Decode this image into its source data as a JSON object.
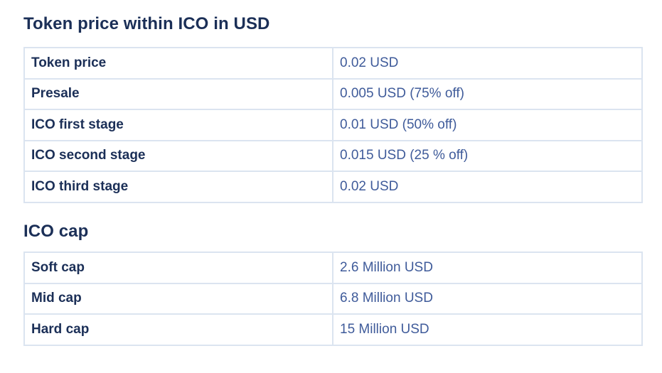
{
  "price_section": {
    "title": "Token price within ICO in USD",
    "rows": [
      {
        "label": "Token price",
        "value": "0.02 USD"
      },
      {
        "label": "Presale",
        "value": "0.005 USD (75% off)"
      },
      {
        "label": "ICO first stage",
        "value": "0.01 USD (50% off)"
      },
      {
        "label": "ICO second stage",
        "value": "0.015 USD (25 % off)"
      },
      {
        "label": "ICO third stage",
        "value": "0.02 USD"
      }
    ]
  },
  "cap_section": {
    "title": "ICO cap",
    "rows": [
      {
        "label": "Soft cap",
        "value": "2.6 Million USD"
      },
      {
        "label": "Mid cap",
        "value": "6.8 Million USD"
      },
      {
        "label": "Hard cap",
        "value": "15 Million USD"
      }
    ]
  },
  "colors": {
    "heading": "#1b2f57",
    "value_text": "#3f5b9a",
    "border": "#dbe4f0"
  }
}
